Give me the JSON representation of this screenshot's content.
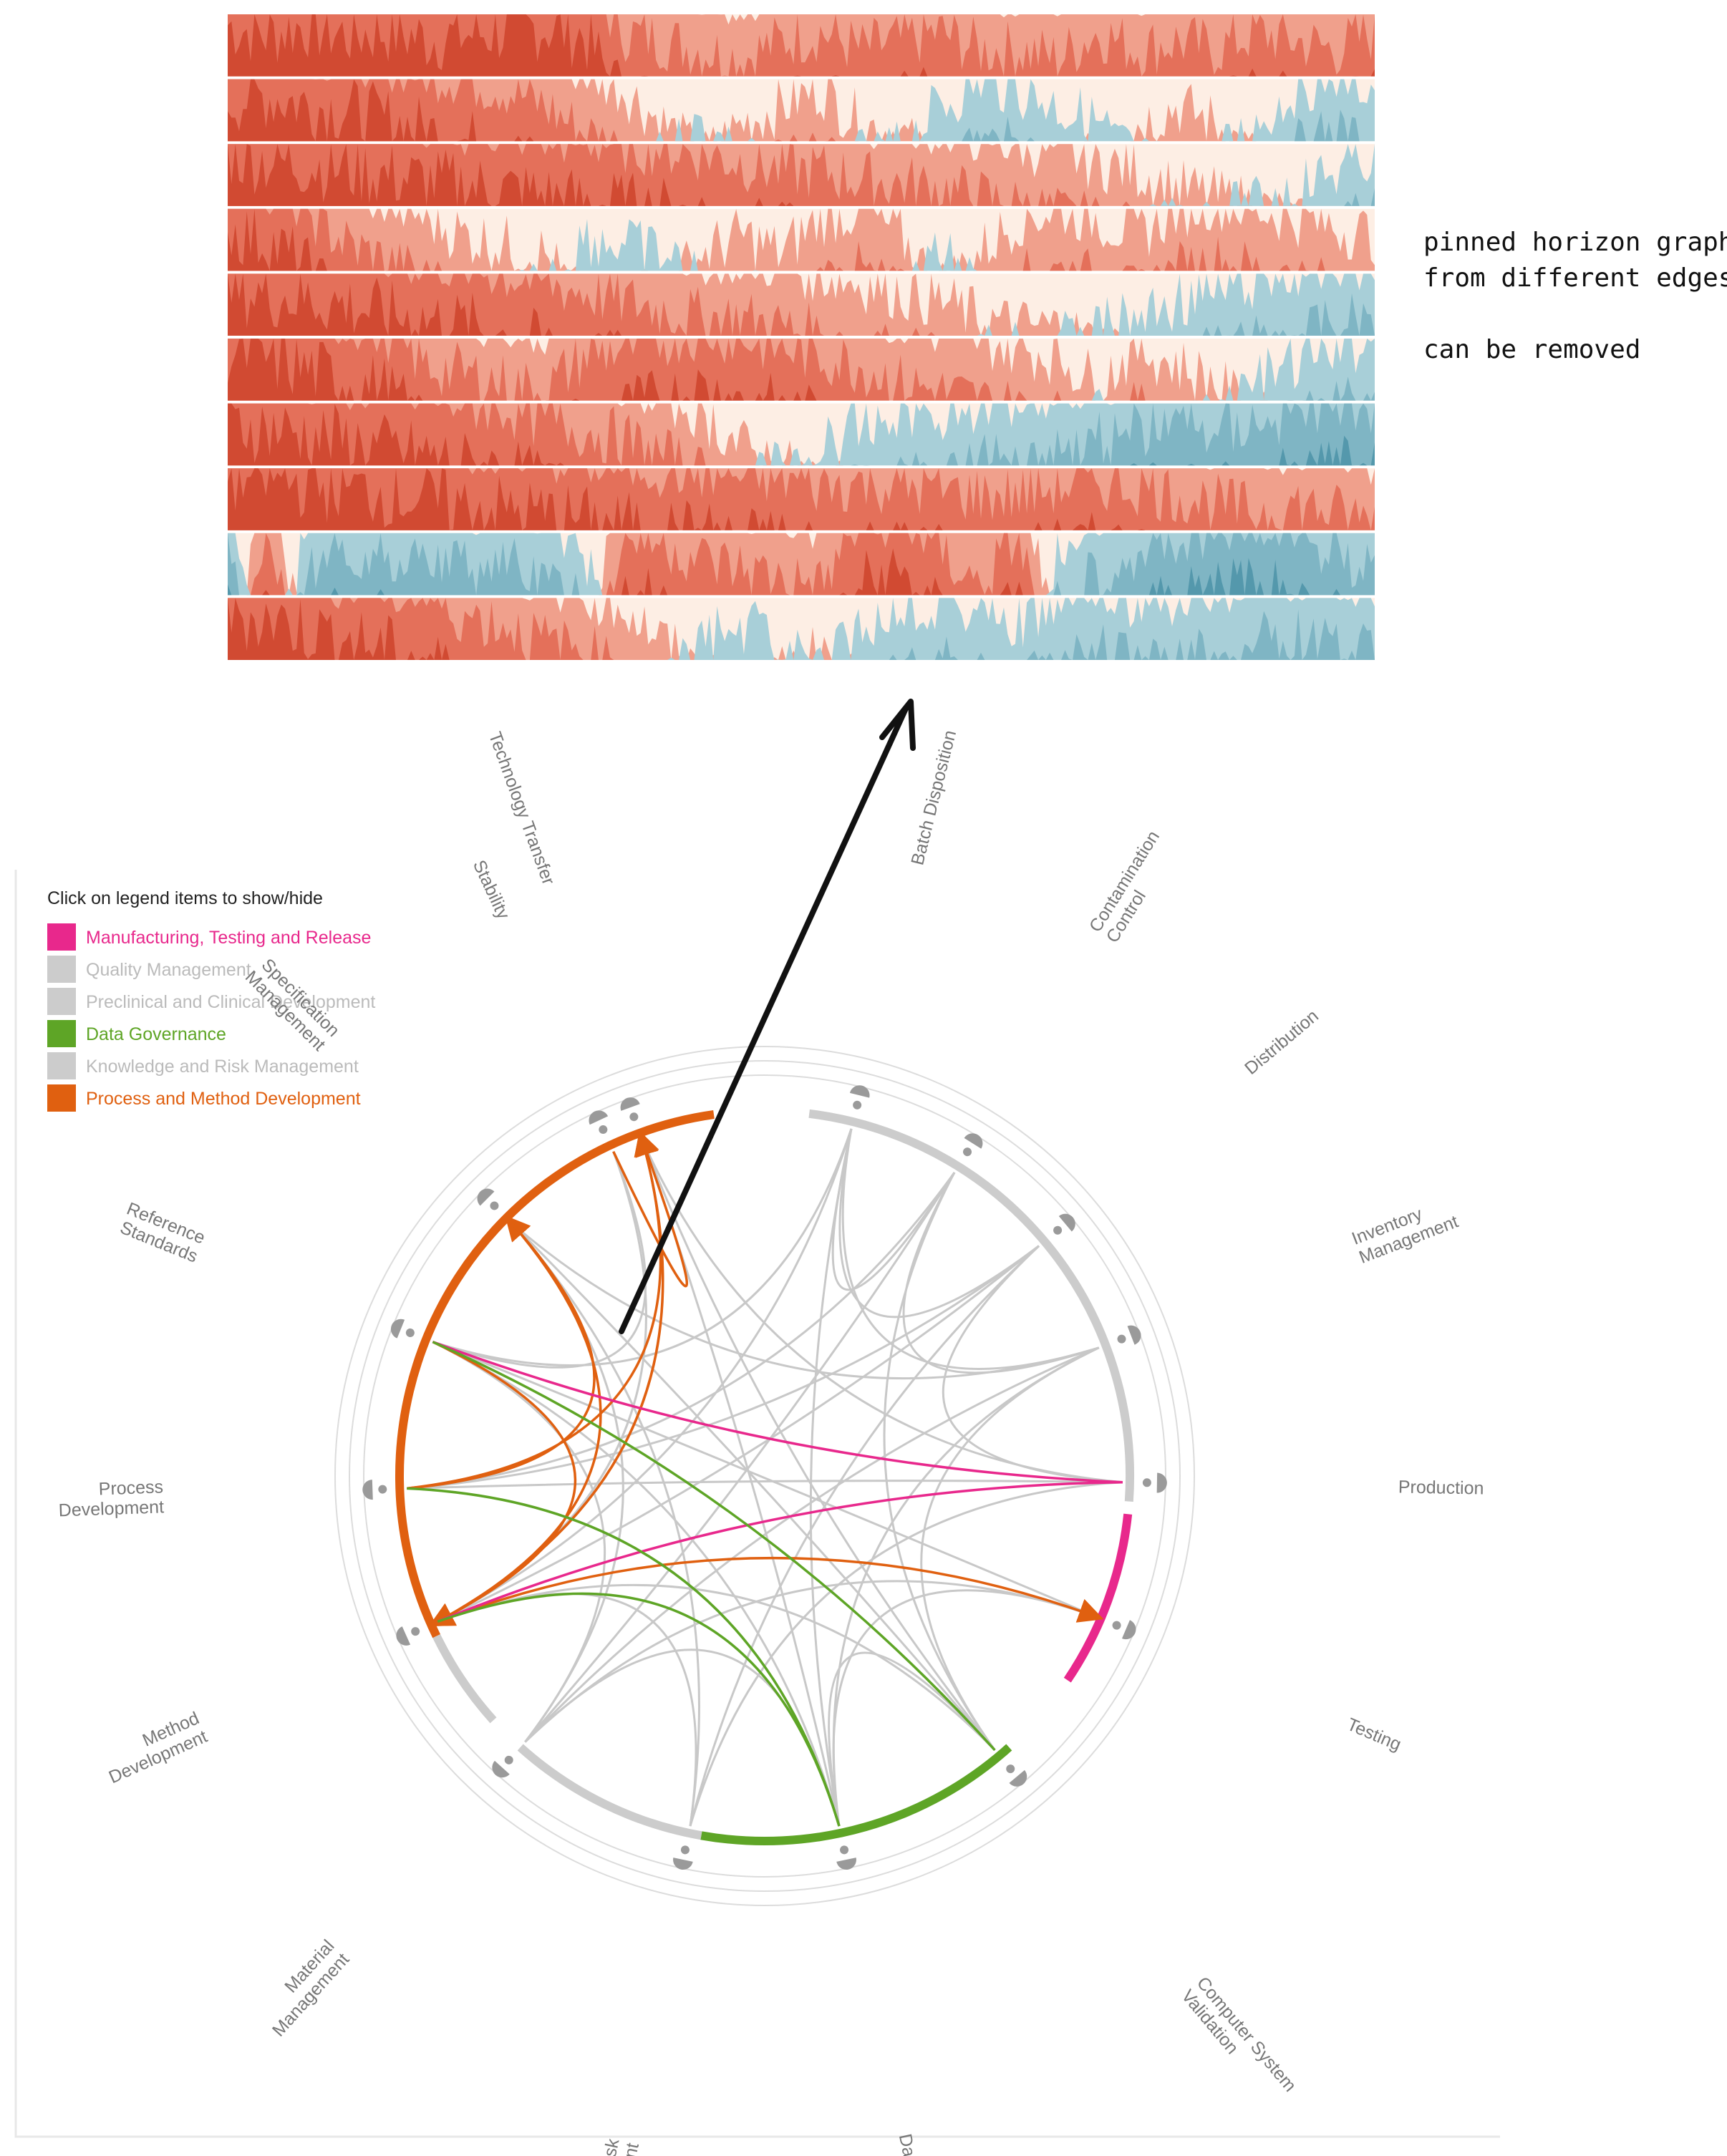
{
  "annotation": {
    "lines": [
      "pinned horizon graphs",
      "from different edges"
    ],
    "note": "can be removed"
  },
  "legend": {
    "title": "Click on legend items to show/hide",
    "items": [
      {
        "label": "Manufacturing, Testing and Release",
        "color": "#e8288c",
        "active": true
      },
      {
        "label": "Quality Management",
        "color": "#cccccc",
        "active": false
      },
      {
        "label": "Preclinical and Clinical Development",
        "color": "#cccccc",
        "active": false
      },
      {
        "label": "Data Governance",
        "color": "#5ea526",
        "active": true
      },
      {
        "label": "Knowledge and Risk Management",
        "color": "#cccccc",
        "active": false
      },
      {
        "label": "Process and Method Development",
        "color": "#e06010",
        "active": true
      }
    ]
  },
  "nodes": [
    {
      "id": "technology-transfer",
      "lines": [
        "Technology Transfer"
      ]
    },
    {
      "id": "batch-disposition",
      "lines": [
        "Batch Disposition"
      ]
    },
    {
      "id": "contamination-control",
      "lines": [
        "Contamination",
        "Control"
      ]
    },
    {
      "id": "distribution",
      "lines": [
        "Distribution"
      ]
    },
    {
      "id": "inventory-management",
      "lines": [
        "Inventory",
        "Management"
      ]
    },
    {
      "id": "production",
      "lines": [
        "Production"
      ]
    },
    {
      "id": "testing",
      "lines": [
        "Testing"
      ]
    },
    {
      "id": "computer-system-validation",
      "lines": [
        "Computer System",
        "Validation"
      ]
    },
    {
      "id": "data-integrity",
      "lines": [
        "Data Integrity"
      ]
    },
    {
      "id": "data-risk-management",
      "lines": [
        "Data Risk",
        "Management"
      ]
    },
    {
      "id": "material-management",
      "lines": [
        "Material",
        "Management"
      ]
    },
    {
      "id": "method-development",
      "lines": [
        "Method",
        "Development"
      ]
    },
    {
      "id": "process-development",
      "lines": [
        "Process",
        "Development"
      ]
    },
    {
      "id": "reference-standards",
      "lines": [
        "Reference",
        "Standards"
      ]
    },
    {
      "id": "specification-management",
      "lines": [
        "Specification",
        "Management"
      ]
    },
    {
      "id": "stability",
      "lines": [
        "Stability"
      ]
    }
  ],
  "colors": {
    "red_band": [
      "#fdeee4",
      "#f0a08c",
      "#e4705a",
      "#d14a32",
      "#b83220"
    ],
    "blue_band": [
      "#a8cfd8",
      "#7fb5c4",
      "#5498ac"
    ],
    "edge_gray": "#c8c8c8",
    "node_gray": "#9a9a9a",
    "label_gray": "#777777"
  },
  "horizon": {
    "rows": 10,
    "row_profiles": [
      [
        0.95,
        0.9,
        0.95,
        0.9,
        0.92,
        0.88,
        0.9,
        0.92,
        0.94,
        0.9,
        0.6,
        0.55,
        0.5,
        0.45,
        0.55,
        0.6,
        0.5,
        0.55,
        0.6,
        0.5,
        0.5,
        0.45,
        0.6,
        0.5,
        0.55,
        0.5,
        0.6,
        0.55,
        0.5,
        0.6
      ],
      [
        0.9,
        0.92,
        0.88,
        0.85,
        0.8,
        0.75,
        0.7,
        0.65,
        0.55,
        0.4,
        0.3,
        0.1,
        -0.1,
        0.1,
        0.2,
        0.3,
        0.1,
        0.05,
        -0.2,
        -0.35,
        -0.3,
        -0.2,
        -0.1,
        0.1,
        0.2,
        0.1,
        -0.1,
        -0.3,
        -0.4,
        -0.3
      ],
      [
        0.95,
        0.92,
        0.9,
        0.88,
        0.85,
        0.82,
        0.8,
        0.78,
        0.75,
        0.72,
        0.7,
        0.68,
        0.65,
        0.6,
        0.55,
        0.55,
        0.5,
        0.48,
        0.45,
        0.4,
        0.35,
        0.3,
        0.25,
        0.2,
        0.1,
        0.05,
        0.0,
        -0.1,
        -0.2,
        -0.3
      ],
      [
        0.9,
        0.85,
        0.7,
        0.5,
        0.4,
        0.3,
        0.2,
        0.15,
        0.1,
        -0.2,
        -0.15,
        -0.1,
        0.1,
        0.2,
        0.1,
        0.3,
        0.35,
        0.2,
        -0.1,
        0.1,
        0.3,
        0.35,
        0.3,
        0.2,
        0.35,
        0.4,
        0.35,
        0.3,
        0.25,
        0.2
      ],
      [
        0.92,
        0.9,
        0.88,
        0.85,
        0.8,
        0.78,
        0.75,
        0.7,
        0.65,
        0.6,
        0.55,
        0.5,
        0.45,
        0.45,
        0.4,
        0.35,
        0.3,
        0.25,
        0.2,
        0.1,
        0.05,
        0.05,
        -0.05,
        -0.1,
        -0.2,
        -0.25,
        -0.3,
        -0.35,
        -0.4,
        -0.45
      ],
      [
        0.95,
        0.9,
        0.85,
        0.8,
        0.75,
        0.55,
        0.5,
        0.45,
        0.4,
        0.6,
        0.65,
        0.7,
        0.75,
        0.7,
        0.65,
        0.6,
        0.55,
        0.45,
        0.4,
        0.35,
        0.3,
        0.25,
        0.1,
        0.3,
        0.2,
        0.1,
        -0.1,
        -0.2,
        -0.3,
        -0.35
      ],
      [
        0.9,
        0.88,
        0.85,
        0.82,
        0.78,
        0.75,
        0.7,
        0.68,
        0.6,
        0.55,
        0.5,
        0.4,
        0.3,
        0.1,
        0.0,
        -0.1,
        -0.2,
        -0.3,
        -0.3,
        -0.35,
        -0.4,
        -0.45,
        -0.5,
        -0.55,
        -0.6,
        -0.55,
        -0.6,
        -0.65,
        -0.7,
        -0.7
      ],
      [
        0.95,
        0.95,
        0.92,
        0.9,
        0.88,
        0.85,
        0.82,
        0.8,
        0.78,
        0.75,
        0.72,
        0.7,
        0.68,
        0.65,
        0.65,
        0.6,
        0.62,
        0.6,
        0.58,
        0.55,
        0.55,
        0.6,
        0.62,
        0.6,
        0.55,
        0.5,
        0.45,
        0.5,
        0.45,
        0.4
      ],
      [
        -0.7,
        0.9,
        -0.5,
        -0.6,
        -0.55,
        -0.6,
        -0.5,
        -0.55,
        -0.4,
        -0.3,
        0.7,
        0.65,
        0.55,
        0.5,
        0.45,
        0.4,
        0.75,
        0.8,
        0.6,
        0.4,
        0.7,
        -0.3,
        -0.5,
        -0.6,
        -0.65,
        -0.7,
        -0.75,
        -0.7,
        -0.6,
        -0.5
      ],
      [
        0.92,
        0.9,
        0.85,
        0.8,
        0.75,
        0.7,
        0.6,
        0.55,
        0.45,
        0.4,
        0.3,
        0.1,
        -0.1,
        -0.2,
        -0.1,
        0.1,
        -0.2,
        -0.3,
        -0.35,
        -0.3,
        -0.2,
        -0.3,
        -0.4,
        -0.3,
        -0.35,
        -0.4,
        -0.45,
        -0.5,
        -0.45,
        -0.4
      ]
    ]
  }
}
